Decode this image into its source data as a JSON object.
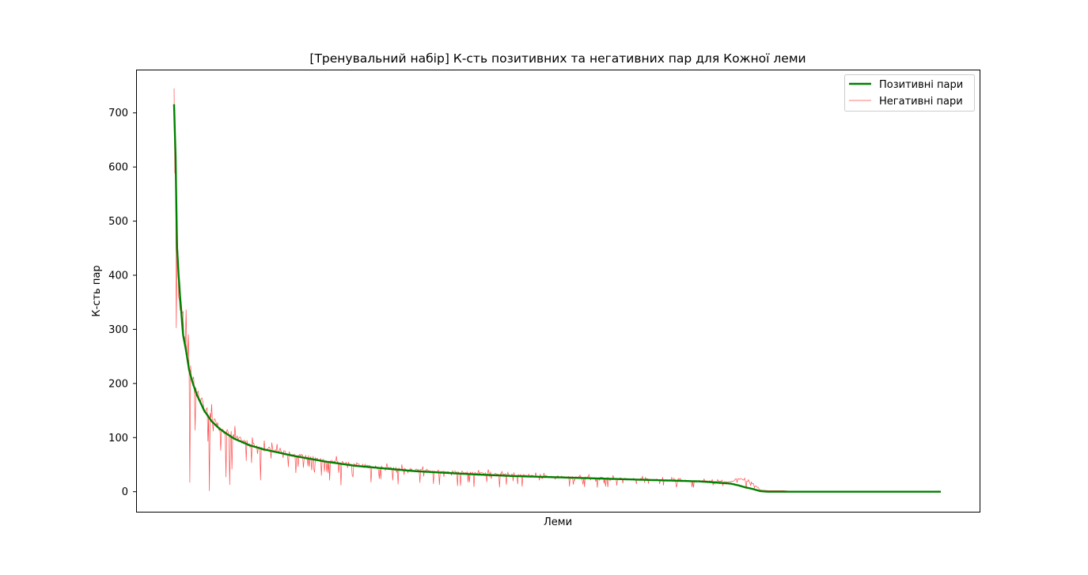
{
  "chart_data": {
    "type": "line",
    "title": "[Тренувальний набір] К-сть позитивних та негативних пар для Кожної леми",
    "xlabel": "Леми",
    "ylabel": "К-сть пар",
    "ylim": [
      -37,
      780
    ],
    "yticks": [
      0,
      100,
      200,
      300,
      400,
      500,
      600,
      700
    ],
    "x_tick_labels_visible": false,
    "grid": false,
    "legend_position": "top-right",
    "x": [
      0,
      2,
      4,
      6,
      8,
      12,
      16,
      20,
      25,
      30,
      35,
      40,
      50,
      60,
      70,
      80,
      100,
      120,
      140,
      160,
      180,
      200,
      240,
      280,
      320,
      360,
      400,
      450,
      500,
      550,
      600,
      650,
      700,
      740,
      750,
      760,
      770,
      780,
      790,
      800,
      810,
      820,
      830,
      840,
      850,
      900,
      950,
      1000,
      1020
    ],
    "series": [
      {
        "name": "Позитивні пари",
        "color": "#008000",
        "values": [
          716,
          620,
          450,
          400,
          360,
          290,
          260,
          225,
          200,
          180,
          165,
          150,
          130,
          117,
          107,
          98,
          86,
          78,
          72,
          66,
          61,
          56,
          48,
          43,
          38,
          35,
          32,
          29,
          27,
          25,
          23,
          21,
          19,
          15,
          12,
          8,
          5,
          1,
          0,
          0,
          0,
          0,
          0,
          0,
          0,
          0,
          0,
          0,
          0
        ]
      },
      {
        "name": "Негативні пари",
        "color": "#ff0000",
        "values": [
          740,
          600,
          480,
          380,
          350,
          300,
          270,
          235,
          205,
          185,
          170,
          155,
          135,
          120,
          110,
          100,
          88,
          80,
          74,
          68,
          62,
          58,
          50,
          44,
          40,
          37,
          34,
          31,
          28,
          26,
          24,
          22,
          20,
          18,
          25,
          20,
          15,
          3,
          2,
          2,
          2,
          1,
          0,
          0,
          0,
          0,
          0,
          0,
          0
        ]
      }
    ]
  }
}
